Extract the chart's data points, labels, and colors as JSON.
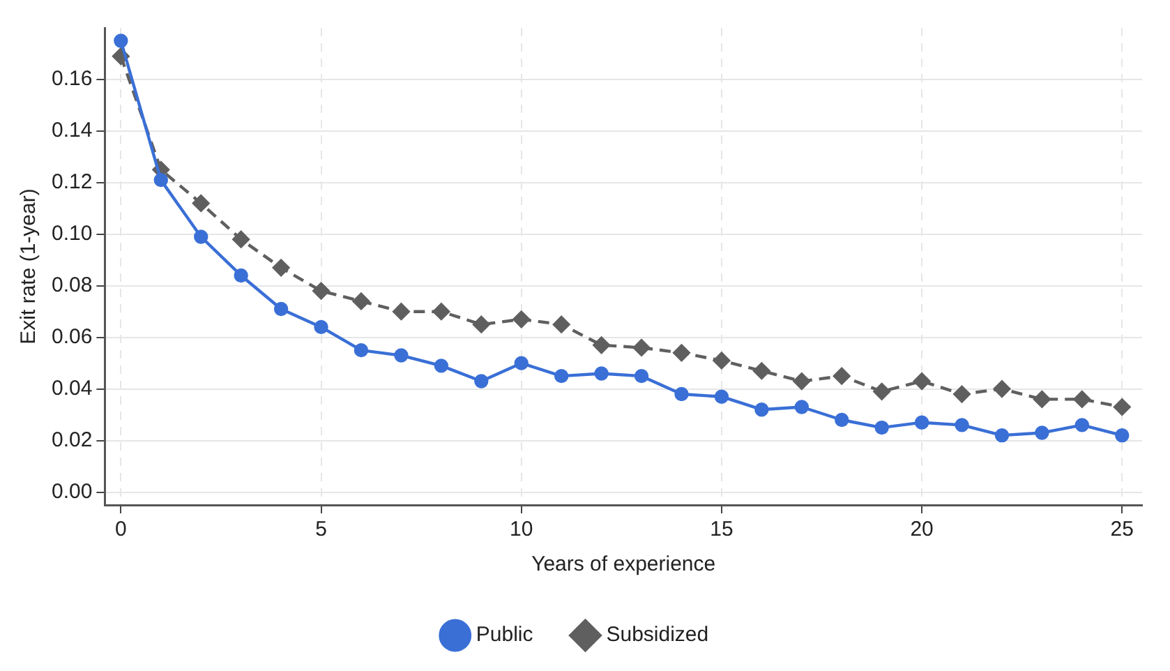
{
  "chart_data": {
    "type": "line",
    "xlabel": "Years of experience",
    "ylabel": "Exit rate (1-year)",
    "x": [
      0,
      1,
      2,
      3,
      4,
      5,
      6,
      7,
      8,
      9,
      10,
      11,
      12,
      13,
      14,
      15,
      16,
      17,
      18,
      19,
      20,
      21,
      22,
      23,
      24,
      25
    ],
    "series": [
      {
        "name": "Public",
        "color": "#3a6fd6",
        "marker": "circle",
        "line_style": "solid",
        "values": [
          0.175,
          0.121,
          0.099,
          0.084,
          0.071,
          0.064,
          0.055,
          0.053,
          0.049,
          0.043,
          0.05,
          0.045,
          0.046,
          0.045,
          0.038,
          0.037,
          0.032,
          0.033,
          0.028,
          0.025,
          0.027,
          0.026,
          0.022,
          0.023,
          0.026,
          0.022
        ]
      },
      {
        "name": "Subsidized",
        "color": "#5f5f5f",
        "marker": "diamond",
        "line_style": "dashed",
        "values": [
          0.169,
          0.125,
          0.112,
          0.098,
          0.087,
          0.078,
          0.074,
          0.07,
          0.07,
          0.065,
          0.067,
          0.065,
          0.057,
          0.056,
          0.054,
          0.051,
          0.047,
          0.043,
          0.045,
          0.039,
          0.043,
          0.038,
          0.04,
          0.036,
          0.036,
          0.033
        ]
      }
    ],
    "xlim": [
      -0.4,
      25.5
    ],
    "xticks": [
      0,
      5,
      10,
      15,
      20,
      25
    ],
    "ylim": [
      -0.005,
      0.18
    ],
    "yticks": [
      {
        "value": 0,
        "label": "0.00"
      },
      {
        "value": 0.02,
        "label": "0.02"
      },
      {
        "value": 0.04,
        "label": "0.04"
      },
      {
        "value": 0.06,
        "label": "0.06"
      },
      {
        "value": 0.08,
        "label": "0.08"
      },
      {
        "value": 0.1,
        "label": "0.10"
      },
      {
        "value": 0.12,
        "label": "0.12"
      },
      {
        "value": 0.14,
        "label": "0.14"
      },
      {
        "value": 0.16,
        "label": "0.16"
      }
    ],
    "grid": true,
    "legend": "bottom"
  }
}
